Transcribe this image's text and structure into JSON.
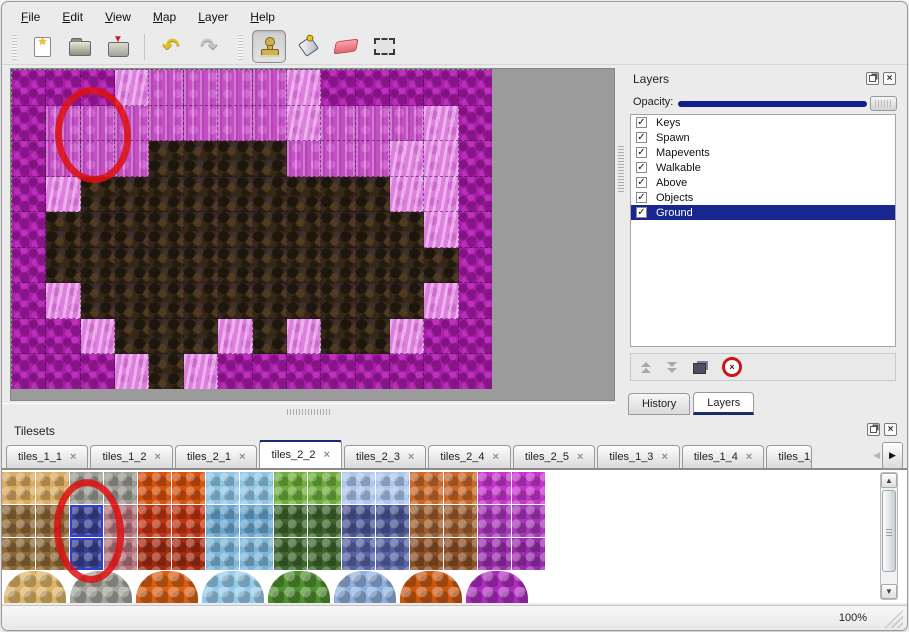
{
  "icons": {
    "close": "×",
    "check": "✓",
    "star": "★",
    "arrow_up": "▲",
    "arrow_down": "▼",
    "arrow_left": "◀",
    "arrow_right": "▶",
    "undo": "↶",
    "redo": "↷",
    "save_arrow": "▼"
  },
  "menu_bar": {
    "items": [
      {
        "label": "File"
      },
      {
        "label": "Edit"
      },
      {
        "label": "View"
      },
      {
        "label": "Map"
      },
      {
        "label": "Layer"
      },
      {
        "label": "Help"
      }
    ]
  },
  "toolbar": {
    "buttons": [
      {
        "name": "new-map"
      },
      {
        "name": "open-map"
      },
      {
        "name": "save-map"
      },
      {
        "name": "undo"
      },
      {
        "name": "redo"
      },
      {
        "name": "stamp-tool",
        "active": true
      },
      {
        "name": "fill-tool"
      },
      {
        "name": "eraser-tool"
      },
      {
        "name": "selection-tool"
      }
    ]
  },
  "map_view": {
    "tile_legend": {
      "M": "dark magenta scales",
      "P": "pink brick",
      "L": "light pink",
      "B": "dark brown rock"
    },
    "tile_colors": {
      "M": "#a81ea8",
      "P": "#c44fc4",
      "L": "#de7ede",
      "B": "#352818"
    },
    "rows": [
      "MMMLPPPPLMMMMM",
      "MPPPPPPPLPPPLM",
      "MPPPBBBBPPPLLM",
      "MLBBBBBBBBBLLM",
      "MBBBBBBBBBBBLM",
      "MBBBBBBBBBBBBM",
      "MLBBBBBBBBBBLM",
      "MMLBBBLBLBBLMM",
      "MMMLBLMMMMMMMM"
    ],
    "annotation": {
      "shape": "ellipse",
      "color": "#dd1111",
      "note": "red ellipse circling pink tiles top-left of map"
    }
  },
  "layers_panel": {
    "title": "Layers",
    "opacity_label": "Opacity:",
    "opacity_value": "100",
    "layers": [
      {
        "name": "Keys",
        "checked": true,
        "selected": false
      },
      {
        "name": "Spawn",
        "checked": true,
        "selected": false
      },
      {
        "name": "Mapevents",
        "checked": true,
        "selected": false
      },
      {
        "name": "Walkable",
        "checked": true,
        "selected": false
      },
      {
        "name": "Above",
        "checked": true,
        "selected": false
      },
      {
        "name": "Objects",
        "checked": true,
        "selected": false
      },
      {
        "name": "Ground",
        "checked": true,
        "selected": true
      }
    ],
    "buttons": [
      {
        "name": "move-layer-up"
      },
      {
        "name": "move-layer-down"
      },
      {
        "name": "duplicate-layer"
      },
      {
        "name": "delete-layer"
      }
    ],
    "tabs": [
      {
        "label": "History",
        "active": false
      },
      {
        "label": "Layers",
        "active": true
      }
    ]
  },
  "tilesets_panel": {
    "title": "Tilesets",
    "tabs": [
      {
        "label": "tiles_1_1",
        "active": false
      },
      {
        "label": "tiles_1_2",
        "active": false
      },
      {
        "label": "tiles_2_1",
        "active": false
      },
      {
        "label": "tiles_2_2",
        "active": true
      },
      {
        "label": "tiles_2_3",
        "active": false
      },
      {
        "label": "tiles_2_4",
        "active": false
      },
      {
        "label": "tiles_2_5",
        "active": false
      },
      {
        "label": "tiles_1_3",
        "active": false
      },
      {
        "label": "tiles_1_4",
        "active": false
      },
      {
        "label": "tiles_1_",
        "active": false,
        "partial": true
      }
    ],
    "palette": {
      "colors": {
        "tan": "#d8ab60",
        "stone": "#9b9b93",
        "lava": "#d5520e",
        "aqua": "#8fc6e4",
        "grass": "#6fae3e",
        "icecrys": "#adc6ec",
        "copper": "#c8682a",
        "mvine": "#c335cb",
        "wood": "#8b6836",
        "bluesel": "#39408e",
        "rose": "#b3747c",
        "fire": "#bf3412",
        "ice": "#6aa5cf",
        "dgrass": "#3c652c",
        "navycrys": "#4a5694",
        "pebble": "#9c5e2e",
        "pvine": "#a836b8",
        "fire2": "#a02b10",
        "ice2": "#7cb5d8",
        "navycrys2": "#5663a4",
        "pebble2": "#8a4e25",
        "pvine2": "#992cab"
      },
      "rows": [
        [
          "tan",
          "tan",
          "stone",
          "stone",
          "lava",
          "lava",
          "aqua",
          "aqua",
          "grass",
          "grass",
          "icecrys",
          "icecrys",
          "copper",
          "copper",
          "mvine",
          "mvine"
        ],
        [
          "wood",
          "wood",
          "bluesel",
          "rose",
          "fire",
          "fire",
          "ice",
          "ice",
          "dgrass",
          "dgrass",
          "navycrys",
          "navycrys",
          "pebble",
          "pebble",
          "pvine",
          "pvine"
        ],
        [
          "wood",
          "wood",
          "bluesel",
          "rose",
          "fire2",
          "fire2",
          "ice2",
          "ice2",
          "dgrass",
          "dgrass",
          "navycrys2",
          "navycrys2",
          "pebble2",
          "pebble2",
          "pvine2",
          "pvine2"
        ]
      ],
      "selected_cells": [
        [
          1,
          2
        ],
        [
          2,
          2
        ]
      ],
      "blob_colors": [
        "#dcb468",
        "#a3a39b",
        "#d95f12",
        "#93cbe9",
        "#4f8f2e",
        "#8fb0dd",
        "#cc5810",
        "#ad2cbe"
      ],
      "annotation": {
        "shape": "ellipse",
        "color": "#dd1111",
        "note": "red ellipse circling selected blue tiles"
      }
    }
  },
  "status_bar": {
    "zoom": "100%"
  }
}
